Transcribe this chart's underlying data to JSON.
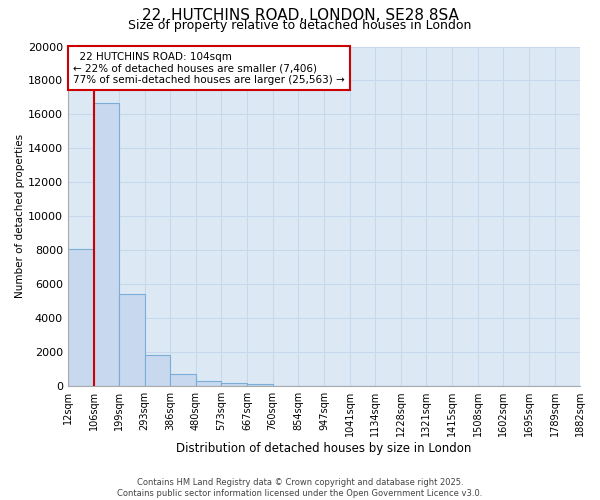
{
  "title1": "22, HUTCHINS ROAD, LONDON, SE28 8SA",
  "title2": "Size of property relative to detached houses in London",
  "xlabel": "Distribution of detached houses by size in London",
  "ylabel": "Number of detached properties",
  "annotation_title": "22 HUTCHINS ROAD: 104sqm",
  "annotation_line1": "← 22% of detached houses are smaller (7,406)",
  "annotation_line2": "77% of semi-detached houses are larger (25,563) →",
  "bar_left_edges": [
    12,
    106,
    199,
    293,
    386,
    480,
    573,
    667,
    760,
    854,
    947,
    1041,
    1134,
    1228,
    1321,
    1415,
    1508,
    1602,
    1695,
    1789
  ],
  "bar_widths": [
    94,
    93,
    94,
    93,
    94,
    93,
    94,
    93,
    94,
    93,
    94,
    93,
    94,
    93,
    94,
    93,
    94,
    93,
    94,
    93
  ],
  "bar_heights": [
    8100,
    16700,
    5400,
    1850,
    700,
    300,
    200,
    130,
    0,
    0,
    0,
    0,
    0,
    0,
    0,
    0,
    0,
    0,
    0,
    0
  ],
  "bar_color": "#c8d9ef",
  "bar_edge_color": "#7aaed6",
  "vline_x": 106,
  "vline_color": "#cc0000",
  "annotation_box_color": "#cc0000",
  "ylim": [
    0,
    20000
  ],
  "yticks": [
    0,
    2000,
    4000,
    6000,
    8000,
    10000,
    12000,
    14000,
    16000,
    18000,
    20000
  ],
  "tick_labels": [
    "12sqm",
    "106sqm",
    "199sqm",
    "293sqm",
    "386sqm",
    "480sqm",
    "573sqm",
    "667sqm",
    "760sqm",
    "854sqm",
    "947sqm",
    "1041sqm",
    "1134sqm",
    "1228sqm",
    "1321sqm",
    "1415sqm",
    "1508sqm",
    "1602sqm",
    "1695sqm",
    "1789sqm",
    "1882sqm"
  ],
  "footer1": "Contains HM Land Registry data © Crown copyright and database right 2025.",
  "footer2": "Contains public sector information licensed under the Open Government Licence v3.0.",
  "grid_color": "#c8d8ec",
  "bg_color": "#dce9f5"
}
